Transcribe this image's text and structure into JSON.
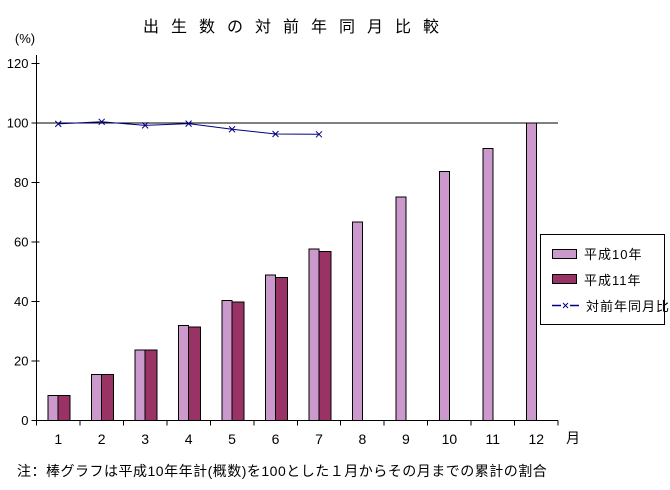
{
  "title": "出生数の対前年同月比較",
  "note": "注：棒グラフは平成10年年計(概数)を100とした１月からその月までの累計の割合",
  "y_axis": {
    "unit": "(%)"
  },
  "x_axis": {
    "unit": "月"
  },
  "colors": {
    "bar_h10": "#cc99cc",
    "bar_h11": "#993366",
    "ratio_line": "#000080",
    "axis": "#000000"
  },
  "chart_data": {
    "type": "bar",
    "title": "出生数の対前年同月比較",
    "xlabel": "月",
    "ylabel": "(%)",
    "ylim": [
      0,
      120
    ],
    "yticks": [
      0,
      20,
      40,
      60,
      80,
      100,
      120
    ],
    "reference_line": 100,
    "grid": false,
    "legend_position": "right",
    "categories": [
      "1",
      "2",
      "3",
      "4",
      "5",
      "6",
      "7",
      "8",
      "9",
      "10",
      "11",
      "12"
    ],
    "series": [
      {
        "name": "平成10年",
        "type": "bar",
        "color": "#cc99cc",
        "values": [
          8.4,
          15.5,
          23.7,
          31.9,
          40.3,
          48.9,
          57.7,
          66.7,
          75.2,
          83.7,
          91.5,
          100.0
        ]
      },
      {
        "name": "平成11年",
        "type": "bar",
        "color": "#993366",
        "values": [
          8.4,
          15.5,
          23.7,
          31.5,
          39.9,
          48.1,
          56.8
        ]
      },
      {
        "name": "対前年同月比",
        "type": "line",
        "color": "#000080",
        "marker": "x",
        "values": [
          99.7,
          100.4,
          99.2,
          99.8,
          97.9,
          96.3,
          96.2
        ]
      }
    ]
  }
}
